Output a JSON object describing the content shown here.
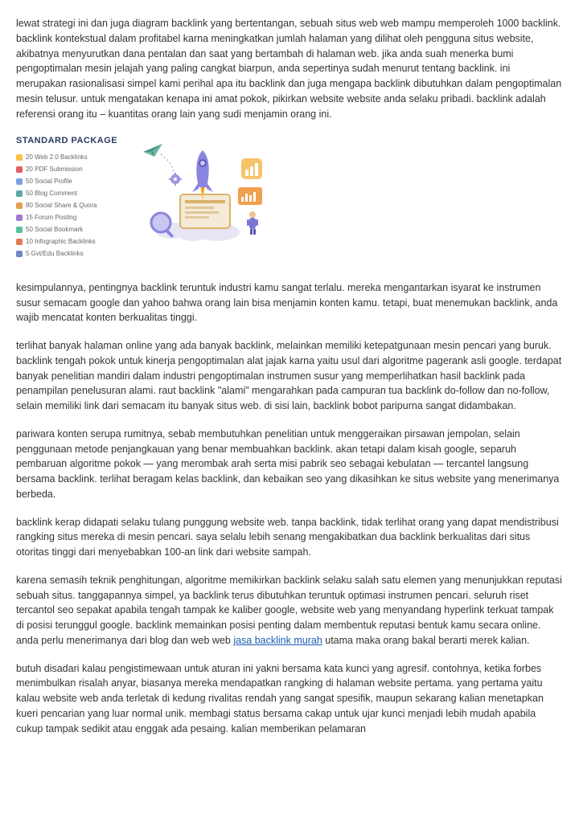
{
  "paragraphs": {
    "p1": "lewat strategi ini dan juga diagram backlink yang bertentangan, sebuah situs web web mampu memperoleh 1000 backlink. backlink kontekstual dalam profitabel karna meningkatkan jumlah halaman yang dilihat oleh pengguna situs website, akibatnya menyurutkan dana pentalan dan saat yang bertambah di halaman web. jika anda suah menerka bumi pengoptimalan mesin jelajah yang paling cangkat biarpun, anda sepertinya sudah menurut tentang backlink. ini merupakan rasionalisasi simpel kami perihal apa itu backlink dan juga mengapa backlink dibutuhkan dalam pengoptimalan mesin telusur. untuk mengatakan kenapa ini amat pokok, pikirkan website website anda selaku pribadi. backlink adalah referensi orang itu – kuantitas orang lain yang sudi menjamin orang ini.",
    "p2": "kesimpulannya, pentingnya backlink teruntuk industri kamu sangat terlalu. mereka mengantarkan isyarat ke instrumen susur semacam google dan yahoo bahwa orang lain bisa menjamin konten kamu. tetapi, buat menemukan backlink, anda wajib mencatat konten berkualitas tinggi.",
    "p3": "terlihat banyak halaman online yang ada banyak backlink, melainkan memiliki ketepatgunaan mesin pencari yang buruk. backlink tengah pokok untuk kinerja pengoptimalan alat jajak karna yaitu usul dari algoritme pagerank asli google. terdapat banyak penelitian mandiri dalam industri pengoptimalan instrumen susur yang memperlihatkan hasil backlink pada penampilan penelusuran alami. raut backlink \"alami\" mengarahkan pada campuran tua backlink do-follow dan no-follow, selain memiliki link dari semacam itu banyak situs web. di sisi lain, backlink bobot paripurna sangat didambakan.",
    "p4": "pariwara konten serupa rumitnya, sebab membutuhkan penelitian untuk menggeraikan pirsawan jempolan, selain penggunaan metode penjangkauan yang benar membuahkan backlink. akan tetapi dalam kisah google, separuh pembaruan algoritme pokok — yang merombak arah serta misi pabrik seo sebagai kebulatan — tercantel langsung bersama backlink. terlihat beragam kelas backlink, dan kebaikan seo yang dikasihkan ke situs website yang menerimanya berbeda.",
    "p5": "backlink kerap didapati selaku tulang punggung website web. tanpa backlink, tidak terlihat orang yang dapat mendistribusi rangking situs mereka di mesin pencari. saya selalu lebih senang mengakibatkan dua backlink berkualitas dari situs otoritas tinggi dari menyebabkan 100-an link dari website sampah.",
    "p6_before": "karena semasih teknik penghitungan, algoritme memikirkan backlink selaku salah satu elemen yang menunjukkan reputasi sebuah situs. tanggapannya simpel, ya backlink terus dibutuhkan teruntuk optimasi instrumen pencari. seluruh riset tercantol seo sepakat apabila tengah tampak ke kaliber google, website web yang menyandang hyperlink terkuat tampak di posisi terunggul google. backlink memainkan posisi penting dalam membentuk reputasi bentuk kamu secara online. anda perlu menerimanya dari blog dan web web ",
    "p6_link": "jasa backlink murah",
    "p6_after": " utama maka orang bakal berarti merek kalian.",
    "p7": "butuh disadari kalau pengistimewaan untuk aturan ini yakni bersama kata kunci yang agresif. contohnya, ketika forbes menimbulkan risalah anyar, biasanya mereka mendapatkan rangking di halaman website pertama. yang pertama yaitu kalau website web anda terletak di kedung rivalitas rendah yang sangat spesifik, maupun sekarang kalian menetapkan kueri pencarian yang luar normal unik. membagi status bersama cakap untuk ujar kunci menjadi lebih mudah apabila cukup tampak sedikit atau enggak ada pesaing. kalian memberikan pelamaran"
  },
  "package": {
    "title": "STANDARD PACKAGE",
    "items": [
      {
        "label": "20 Web 2.0 Backlinks",
        "color": "#f5c242"
      },
      {
        "label": "20 PDF Submission",
        "color": "#e85d5d"
      },
      {
        "label": "50 Social Profile",
        "color": "#7b9fe0"
      },
      {
        "label": "50 Blog Comment",
        "color": "#5da8a0"
      },
      {
        "label": "80 Social Share & Quora",
        "color": "#e0a050"
      },
      {
        "label": "15 Forum Posting",
        "color": "#a27bd0"
      },
      {
        "label": "50 Social Bookmark",
        "color": "#5dbfa0"
      },
      {
        "label": "10 Infographic Backlinks",
        "color": "#e07b50"
      },
      {
        "label": "5 Gvt/Edu Backlinks",
        "color": "#6b8bc4"
      }
    ]
  },
  "illustration": {
    "colors": {
      "rocket_body": "#8a85e0",
      "rocket_window": "#5b57b8",
      "flame_outer": "#f7c948",
      "flame_inner": "#f08a24",
      "cloud": "#e8e6f5",
      "magnifier_ring": "#8a85e0",
      "magnifier_glass": "#c9c6f0",
      "screen_border": "#d9b36b",
      "screen_fill": "#f4ead6",
      "chart_rect": "#f0a050",
      "charticon_bg": "#f5c46b",
      "charticon_bar": "#ffffff",
      "plane_body": "#6fb8a8",
      "plane_wing": "#4a9486",
      "gear": "#9b96e0",
      "person_body": "#7b76d4",
      "person_head": "#f0c090"
    }
  },
  "link": {
    "href": "#"
  }
}
